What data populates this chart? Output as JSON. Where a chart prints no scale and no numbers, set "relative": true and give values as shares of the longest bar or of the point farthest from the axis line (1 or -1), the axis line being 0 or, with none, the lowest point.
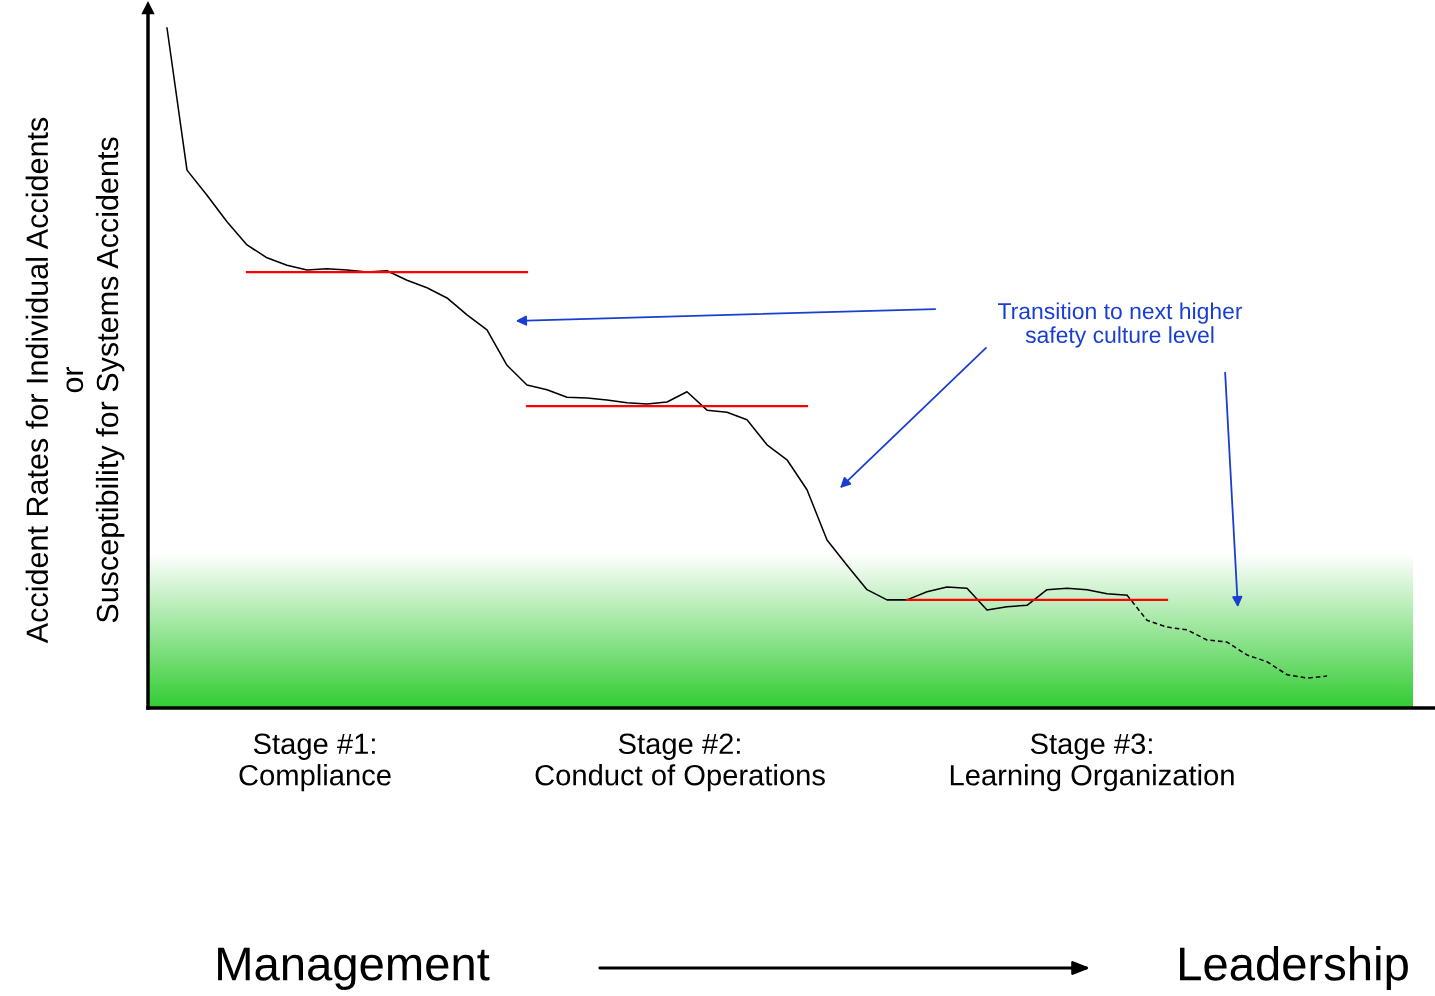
{
  "chart_data": {
    "type": "line",
    "relative": true,
    "ylabel": "Accident Rates for Individual Accidents\nor\nSusceptibility for Systems Accidents",
    "categories": [
      null,
      null,
      null,
      null,
      null,
      null,
      null,
      null,
      null,
      null,
      null,
      null,
      null,
      null,
      null,
      null,
      null,
      null,
      null,
      null,
      null,
      null,
      null,
      null,
      null,
      null,
      null,
      null,
      null,
      null,
      null,
      null,
      null,
      null,
      null,
      null,
      null,
      null,
      null,
      null,
      null,
      null,
      null,
      null,
      null,
      null,
      null,
      null,
      null,
      null,
      null,
      null,
      null,
      null,
      null,
      null,
      null,
      null,
      null
    ],
    "series": [
      {
        "color": "#000000",
        "line_style": "solid",
        "values": [
          1.0,
          0.791,
          0.754,
          0.715,
          0.681,
          0.662,
          0.651,
          0.644,
          0.646,
          0.644,
          0.641,
          0.643,
          0.629,
          0.618,
          0.603,
          0.578,
          0.556,
          0.504,
          0.475,
          0.468,
          0.457,
          0.456,
          0.453,
          0.449,
          0.447,
          0.45,
          0.465,
          0.438,
          0.435,
          0.424,
          0.387,
          0.365,
          0.321,
          0.247,
          0.21,
          0.174,
          0.159,
          0.159,
          0.171,
          0.178,
          0.176,
          0.144,
          0.149,
          0.151,
          0.174,
          0.176,
          0.174,
          0.168,
          0.166,
          null,
          null,
          null,
          null,
          null,
          null,
          null,
          null,
          null,
          null
        ]
      },
      {
        "color": "#000000",
        "line_style": "dashed",
        "values": [
          null,
          null,
          null,
          null,
          null,
          null,
          null,
          null,
          null,
          null,
          null,
          null,
          null,
          null,
          null,
          null,
          null,
          null,
          null,
          null,
          null,
          null,
          null,
          null,
          null,
          null,
          null,
          null,
          null,
          null,
          null,
          null,
          null,
          null,
          null,
          null,
          null,
          null,
          null,
          null,
          null,
          null,
          null,
          null,
          null,
          null,
          null,
          null,
          0.166,
          0.129,
          0.119,
          0.115,
          0.1,
          0.097,
          0.078,
          0.068,
          0.049,
          0.044,
          0.047
        ]
      },
      {
        "color": "#ff0000",
        "line_style": "solid",
        "values": [
          null,
          null,
          null,
          null,
          0.641,
          0.641,
          0.641,
          0.641,
          0.641,
          0.641,
          0.641,
          0.641,
          0.641,
          0.641,
          0.641,
          0.641,
          0.641,
          0.641,
          0.641,
          null,
          null,
          null,
          null,
          null,
          null,
          null,
          null,
          null,
          null,
          null,
          null,
          null,
          null,
          null,
          null,
          null,
          null,
          null,
          null,
          null,
          null,
          null,
          null,
          null,
          null,
          null,
          null,
          null,
          null,
          null,
          null,
          null,
          null,
          null,
          null,
          null,
          null,
          null,
          null
        ]
      },
      {
        "color": "#ff0000",
        "line_style": "solid",
        "values": [
          null,
          null,
          null,
          null,
          null,
          null,
          null,
          null,
          null,
          null,
          null,
          null,
          null,
          null,
          null,
          null,
          null,
          null,
          0.444,
          0.444,
          0.444,
          0.444,
          0.444,
          0.444,
          0.444,
          0.444,
          0.444,
          0.444,
          0.444,
          0.444,
          0.444,
          0.444,
          0.444,
          null,
          null,
          null,
          null,
          null,
          null,
          null,
          null,
          null,
          null,
          null,
          null,
          null,
          null,
          null,
          null,
          null,
          null,
          null,
          null,
          null,
          null,
          null,
          null,
          null,
          null
        ]
      },
      {
        "color": "#ff0000",
        "line_style": "solid",
        "values": [
          null,
          null,
          null,
          null,
          null,
          null,
          null,
          null,
          null,
          null,
          null,
          null,
          null,
          null,
          null,
          null,
          null,
          null,
          null,
          null,
          null,
          null,
          null,
          null,
          null,
          null,
          null,
          null,
          null,
          null,
          null,
          null,
          null,
          null,
          null,
          null,
          null,
          0.159,
          0.159,
          0.159,
          0.159,
          0.159,
          0.159,
          0.159,
          0.159,
          0.159,
          0.159,
          0.159,
          0.159,
          0.159,
          0.159,
          null,
          null,
          null,
          null,
          null,
          null,
          null,
          null
        ]
      }
    ],
    "annotations": [
      "Transition to next higher\nsafety culture level",
      "Stage #1:\nCompliance",
      "Stage #2:\nConduct of Operations",
      "Stage #3:\nLearning Organization",
      "Management",
      "Leadership"
    ]
  }
}
